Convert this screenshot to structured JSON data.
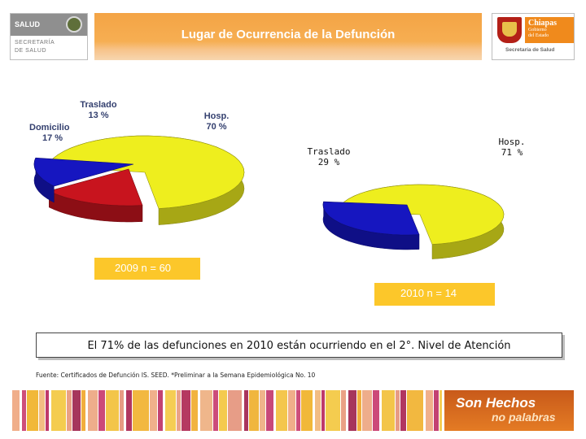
{
  "header": {
    "title": "Lugar de Ocurrencia de la Defunción",
    "left_logo": {
      "name": "SALUD",
      "sub1": "SECRETARÍA",
      "sub2": "DE SALUD"
    },
    "right_logo": {
      "name": "Chiapas",
      "sub1": "Gobierno",
      "sub2": "del Estado",
      "sub3": "Secretaría de Salud"
    }
  },
  "chart_data": [
    {
      "type": "pie",
      "categories": [
        "Hosp.",
        "Domicilio",
        "Traslado"
      ],
      "values": [
        70,
        17,
        13
      ],
      "labels": [
        "Hosp.",
        "Domicilio",
        "Traslado"
      ],
      "value_labels": [
        "70 %",
        "17  %",
        "13 %"
      ],
      "colors": [
        "#eeee1e",
        "#c8141e",
        "#1616c0"
      ],
      "caption": "2009   n = 60"
    },
    {
      "type": "pie",
      "categories": [
        "Hosp.",
        "Traslado"
      ],
      "values": [
        71,
        29
      ],
      "labels": [
        "Hosp.",
        "Traslado"
      ],
      "value_labels": [
        "71 %",
        "29 %"
      ],
      "colors": [
        "#eeee1e",
        "#1616c0"
      ],
      "caption": "2010    n = 14"
    }
  ],
  "conclusion": "El 71% de las defunciones en 2010 están ocurriendo en el 2°. Nivel de Atención",
  "source": "Fuente: Certificados de Defunción  IS. SEED.  *Preliminar a la Semana Epidemiológica No. 10",
  "slogan": {
    "line1": "Son Hechos",
    "line2": "no palabras"
  },
  "colors": {
    "header": "#f4a445",
    "year_box": "#fcc72a",
    "slogan": "#d8671f"
  }
}
